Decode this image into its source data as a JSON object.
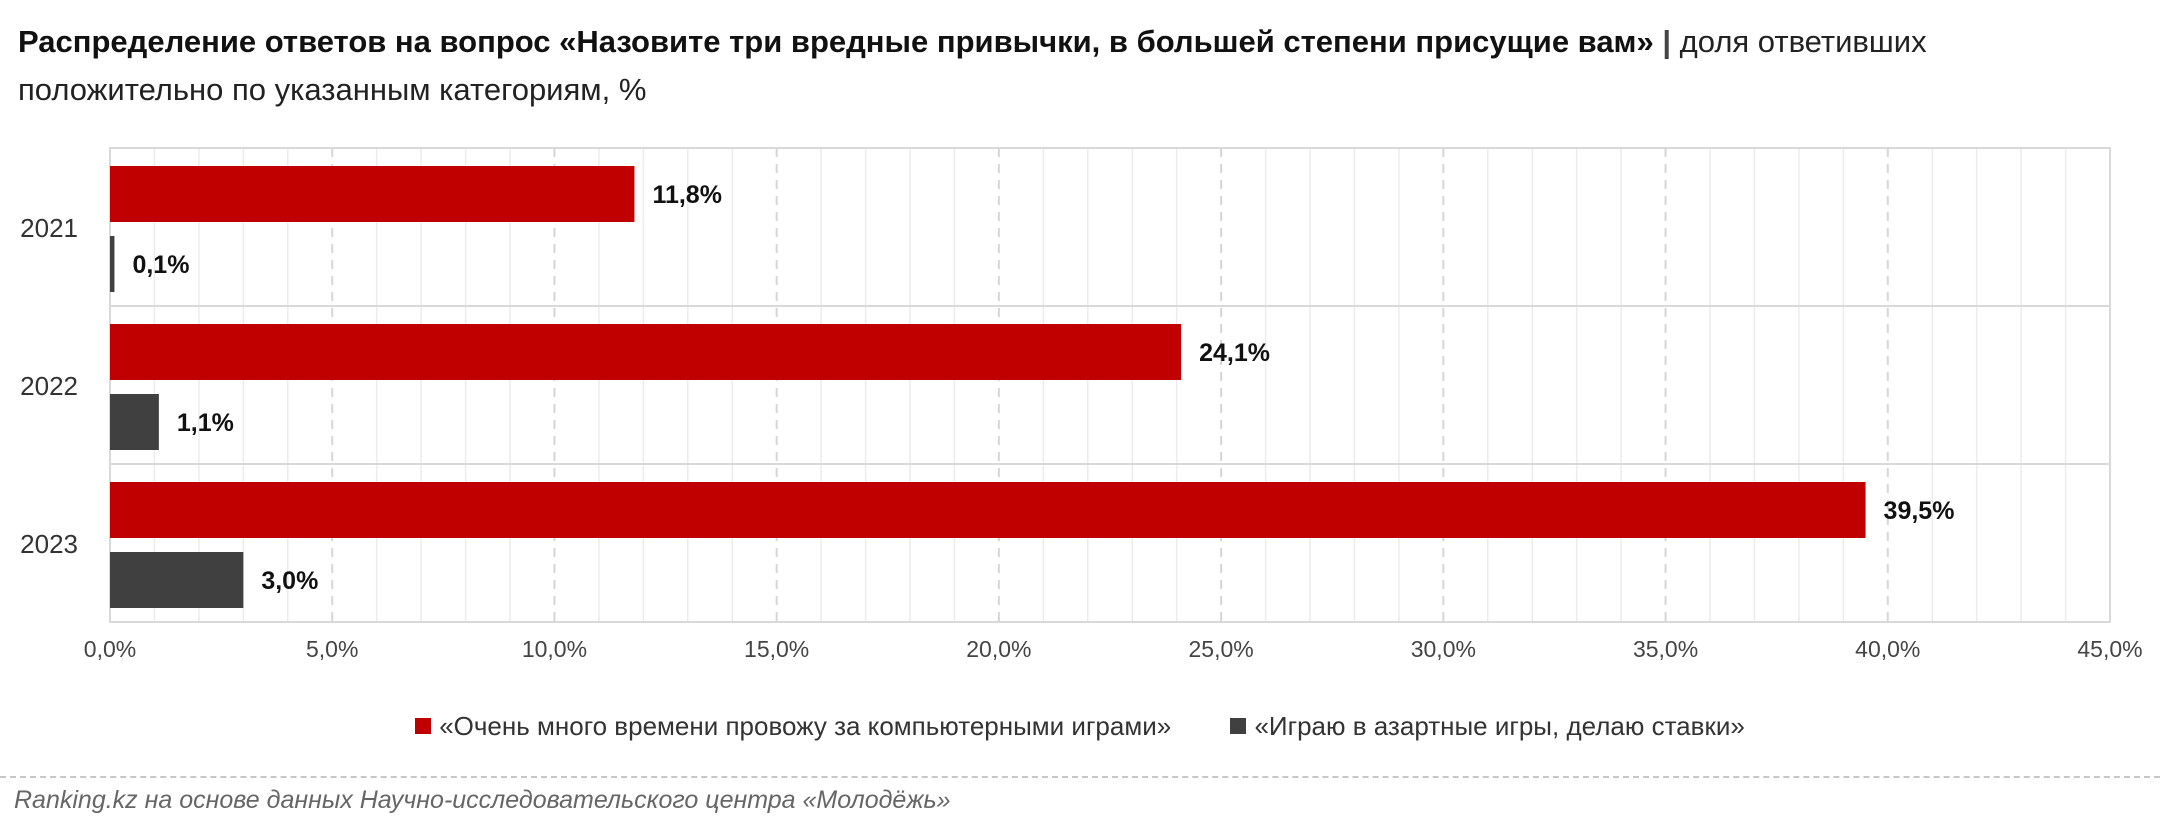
{
  "header": {
    "title_bold": "Распределение ответов на вопрос «Назовите три вредные привычки, в большей степени присущие вам»",
    "separator": "|",
    "title_rest": "доля ответивших положительно по указанным категориям, %"
  },
  "colors": {
    "series1": "#c00000",
    "series2": "#404040",
    "grid": "#d6d6d6"
  },
  "chart_data": {
    "type": "bar",
    "orientation": "horizontal",
    "categories": [
      "2021",
      "2022",
      "2023"
    ],
    "series": [
      {
        "name": "«Очень много времени провожу за компьютерными играми»",
        "values": [
          11.8,
          24.1,
          39.5
        ],
        "labels": [
          "11,8%",
          "24,1%",
          "39,5%"
        ]
      },
      {
        "name": "«Играю в азартные игры, делаю ставки»",
        "values": [
          0.1,
          1.1,
          3.0
        ],
        "labels": [
          "0,1%",
          "1,1%",
          "3,0%"
        ]
      }
    ],
    "xlim": [
      0,
      45
    ],
    "xticks": [
      0,
      5,
      10,
      15,
      20,
      25,
      30,
      35,
      40,
      45
    ],
    "xtick_labels": [
      "0,0%",
      "5,0%",
      "10,0%",
      "15,0%",
      "20,0%",
      "25,0%",
      "30,0%",
      "35,0%",
      "40,0%",
      "45,0%"
    ],
    "grid": true,
    "legend_position": "bottom"
  },
  "source": "Ranking.kz на основе данных Научно-исследовательского центра «Молодёжь»"
}
